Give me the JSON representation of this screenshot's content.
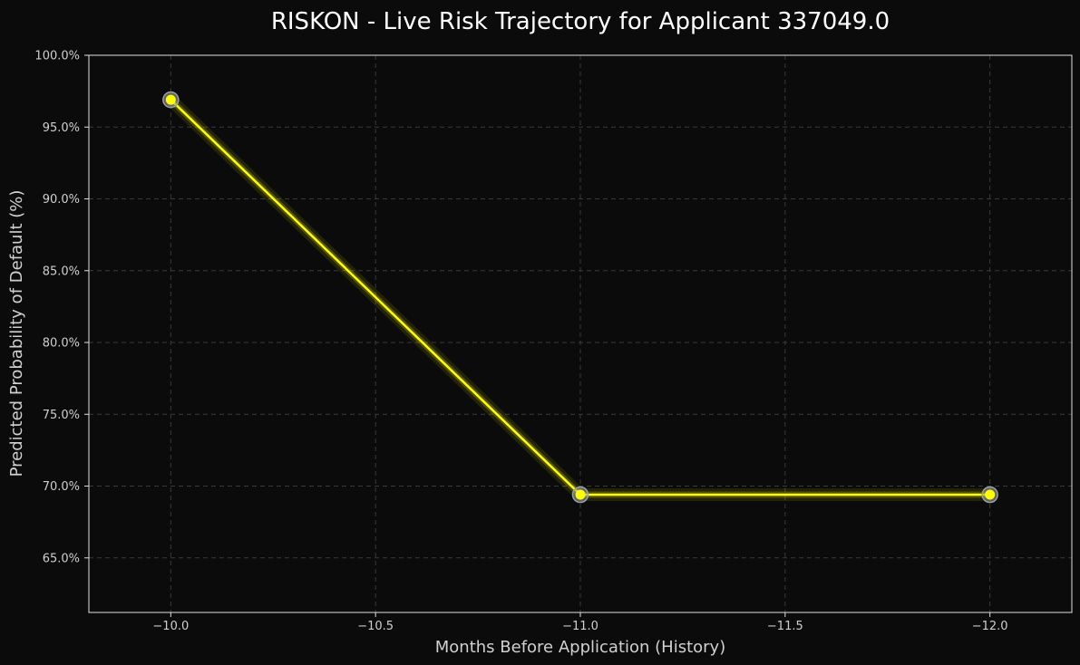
{
  "chart_data": {
    "type": "line",
    "title": "RISKON - Live Risk Trajectory for Applicant 337049.0",
    "xlabel": "Months Before Application (History)",
    "ylabel": "Predicted Probability of Default (%)",
    "x_tick_labels": [
      "−10.0",
      "−10.5",
      "−11.0",
      "−11.5",
      "−12.0"
    ],
    "x_ticks": [
      -10.0,
      -10.5,
      -11.0,
      -11.5,
      -12.0
    ],
    "y_tick_labels": [
      "65.0%",
      "70.0%",
      "75.0%",
      "80.0%",
      "85.0%",
      "90.0%",
      "95.0%",
      "100.0%"
    ],
    "y_ticks": [
      65,
      70,
      75,
      80,
      85,
      90,
      95,
      100
    ],
    "xlim": [
      -9.8,
      -12.2
    ],
    "x_inverted": true,
    "ylim": [
      61.2,
      100
    ],
    "grid": true,
    "series": [
      {
        "x": [
          -10.0,
          -11.0,
          -12.0
        ],
        "values": [
          96.9,
          69.4,
          69.4
        ]
      }
    ],
    "colors": {
      "background": "#0b0b0b",
      "line": "#ffff00",
      "marker_ring": "#9aa0a6",
      "grid": "#3a3a3a",
      "axes": "#e0e0e0"
    }
  }
}
